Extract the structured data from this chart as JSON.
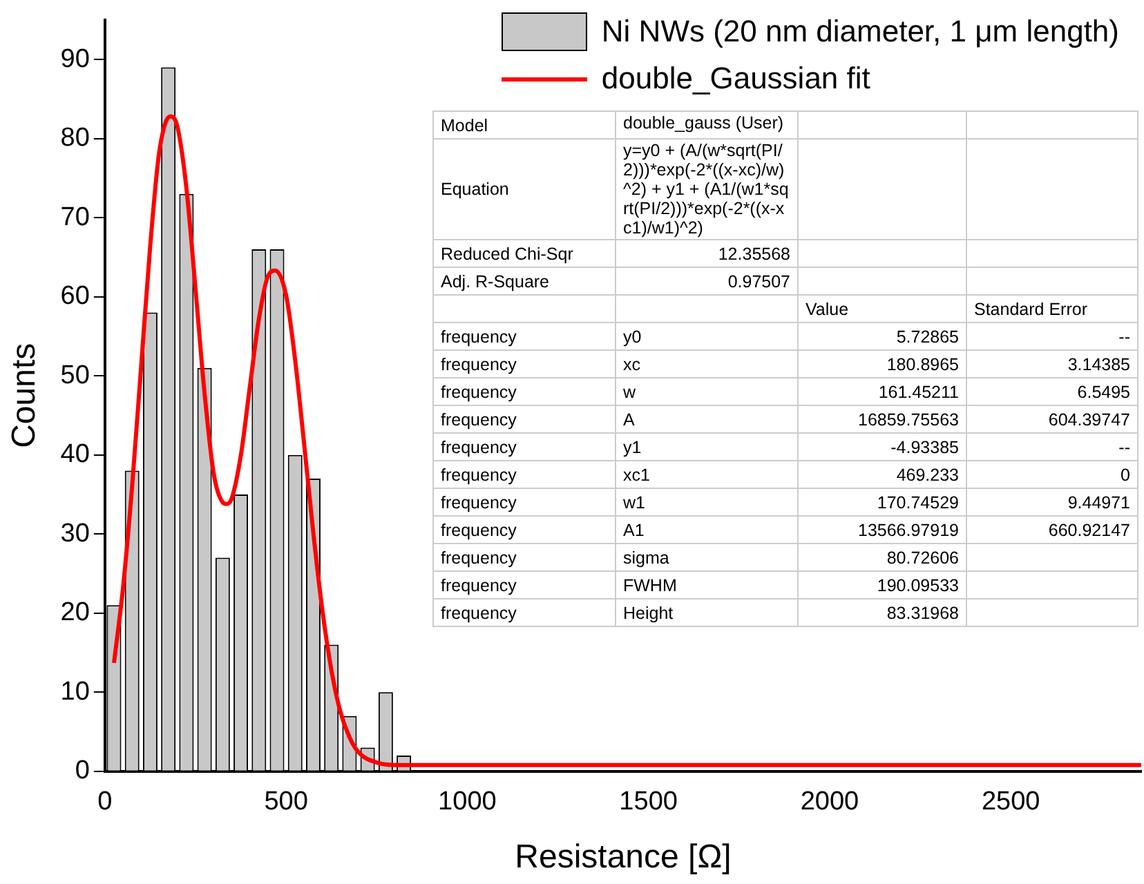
{
  "chart_data": {
    "type": "histogram",
    "xlabel": "Resistance [Ω]",
    "ylabel": "Counts",
    "bins": [
      0,
      50,
      100,
      150,
      200,
      250,
      300,
      350,
      400,
      450,
      500,
      550,
      600,
      650,
      700,
      750,
      800,
      850
    ],
    "series": [
      {
        "name": "Ni NWs (20 nm diameter, 1 μm length)",
        "color": "#c8c8c8",
        "values": [
          21,
          38,
          58,
          89,
          73,
          51,
          27,
          35,
          66,
          66,
          40,
          37,
          16,
          7,
          3,
          10,
          2
        ]
      },
      {
        "name": "double_Gaussian fit",
        "type": "line",
        "color": "#ff0000",
        "x": [
          25,
          50,
          75,
          100,
          125,
          150,
          180,
          200,
          225,
          250,
          275,
          300,
          325,
          335,
          350,
          375,
          400,
          425,
          450,
          470,
          500,
          525,
          550,
          575,
          600,
          625,
          650,
          675,
          700,
          750,
          800,
          900,
          1000,
          1500,
          2000,
          2500,
          2860
        ],
        "values": [
          13.7,
          23.2,
          36,
          51.2,
          66.4,
          78.3,
          82.8,
          81.5,
          73.7,
          61,
          47.8,
          37.7,
          34,
          33.8,
          34.5,
          39.9,
          48.6,
          57.2,
          62.6,
          63.3,
          60.2,
          52,
          41.3,
          30.2,
          20.4,
          12.8,
          7.5,
          4.3,
          2.4,
          1.1,
          0.8,
          0.8,
          0.8,
          0.8,
          0.8,
          0.8,
          0.8
        ]
      }
    ],
    "xlim": [
      0,
      2860
    ],
    "ylim": [
      0,
      95
    ],
    "xticks": [
      0,
      500,
      1000,
      1500,
      2000,
      2500
    ],
    "yticks": [
      0,
      10,
      20,
      30,
      40,
      50,
      60,
      70,
      80,
      90
    ],
    "grid": false,
    "legend": "top right",
    "annotations": [
      "Model\tdouble_gauss (User)",
      "Equation\ty=y0 + (A/(w*sqrt(PI/2)))*exp(-2*((x-xc)/w)^2) + y1 + (A1/(w1*sqrt(PI/2)))*exp(-2*((x-xc1)/w1)^2)",
      "Reduced Chi-Sqr\t12.35568",
      "Adj. R-Square\t0.97507",
      "\t\tValue\tStandard Error",
      "frequency\ty0\t5.72865\t--",
      "frequency\txc\t180.8965\t3.14385",
      "frequency\tw\t161.45211\t6.5495",
      "frequency\tA\t16859.75563\t604.39747",
      "frequency\ty1\t-4.93385\t--",
      "frequency\txc1\t469.233\t0",
      "frequency\tw1\t170.74529\t9.44971",
      "frequency\tA1\t13566.97919\t660.92147",
      "frequency\tsigma\t80.72606\t",
      "frequency\tFWHM\t190.09533\t",
      "frequency\tHeight\t83.31968\t"
    ]
  }
}
